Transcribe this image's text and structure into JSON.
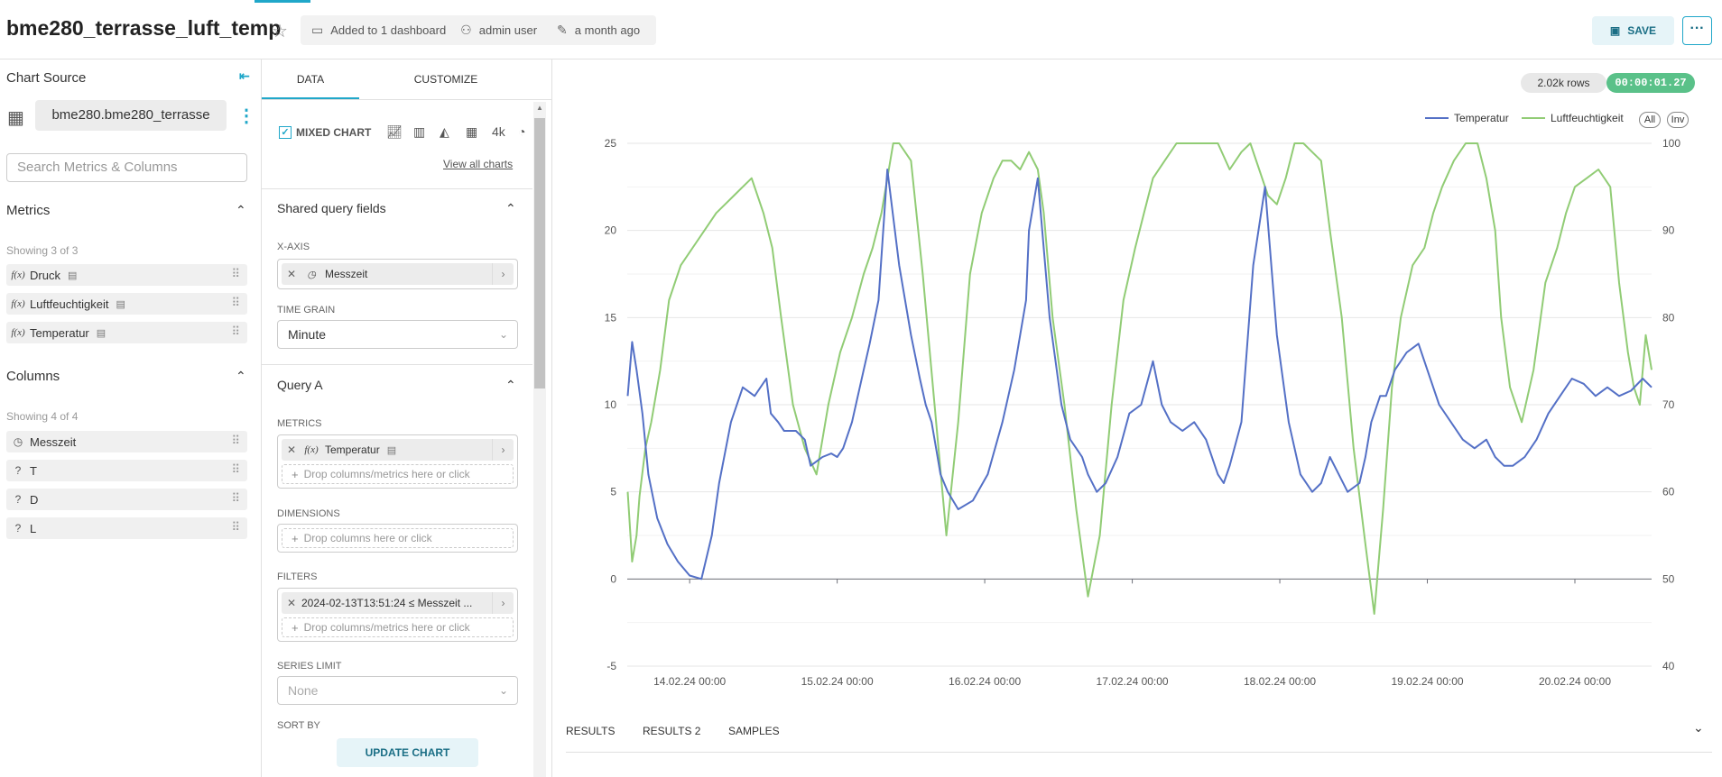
{
  "header": {
    "title": "bme280_terrasse_luft_temp",
    "dashboards": "Added to 1 dashboard",
    "owner": "admin user",
    "modified": "a month ago",
    "save_label": "SAVE",
    "more_label": "···"
  },
  "left": {
    "title": "Chart Source",
    "dataset": "bme280.bme280_terrasse",
    "search_placeholder": "Search Metrics & Columns",
    "metrics_title": "Metrics",
    "metrics_showing": "Showing 3 of 3",
    "metrics": [
      "Druck",
      "Luftfeuchtigkeit",
      "Temperatur"
    ],
    "metric_type": "f(x)",
    "columns_title": "Columns",
    "columns_showing": "Showing 4 of 4",
    "columns": [
      {
        "type": "clock-icon",
        "name": "Messzeit"
      },
      {
        "type": "?",
        "name": "T"
      },
      {
        "type": "?",
        "name": "D"
      },
      {
        "type": "?",
        "name": "L"
      }
    ]
  },
  "mid": {
    "tab_data": "DATA",
    "tab_customize": "CUSTOMIZE",
    "mixed_chart": "MIXED CHART",
    "big_number_icon": "4k",
    "view_all": "View all charts",
    "shared_title": "Shared query fields",
    "xaxis_label": "X-AXIS",
    "xaxis_value": "Messzeit",
    "timegrain_label": "TIME GRAIN",
    "timegrain_value": "Minute",
    "query_title": "Query A",
    "metrics_label": "METRICS",
    "metrics_value": "Temperatur",
    "drop_metrics": "Drop columns/metrics here or click",
    "dimensions_label": "DIMENSIONS",
    "drop_columns": "Drop columns here or click",
    "filters_label": "FILTERS",
    "filter_value": "2024-02-13T13:51:24 ≤ Messzeit ...",
    "drop_filters": "Drop columns/metrics here or click",
    "series_limit_label": "SERIES LIMIT",
    "series_limit_value": "None",
    "sort_by_label": "SORT BY",
    "update_label": "UPDATE CHART"
  },
  "chart_meta": {
    "rows": "2.02k rows",
    "time": "00:00:01.27",
    "legend_all": "All",
    "legend_inv": "Inv",
    "result_tabs": [
      "RESULTS",
      "RESULTS 2",
      "SAMPLES"
    ],
    "colors": {
      "temperatur": "#5470c6",
      "luft": "#91cc75"
    }
  },
  "chart_data": {
    "type": "line",
    "x_ticks": [
      "14.02.24 00:00",
      "15.02.24 00:00",
      "16.02.24 00:00",
      "17.02.24 00:00",
      "18.02.24 00:00",
      "19.02.24 00:00",
      "20.02.24 00:00"
    ],
    "y_left_ticks": [
      "25",
      "20",
      "15",
      "10",
      "5",
      "0",
      "-5"
    ],
    "y_right_ticks": [
      "100",
      "90",
      "80",
      "70",
      "60",
      "50",
      "40"
    ],
    "ylim_left": [
      -5,
      25
    ],
    "ylim_right": [
      40,
      100
    ],
    "xlim_days": [
      13.577,
      20.52
    ],
    "series": [
      {
        "name": "Temperatur",
        "axis": "left",
        "x": [
          13.58,
          13.61,
          13.64,
          13.68,
          13.72,
          13.78,
          13.85,
          13.92,
          14.0,
          14.08,
          14.15,
          14.2,
          14.28,
          14.36,
          14.44,
          14.52,
          14.55,
          14.6,
          14.64,
          14.72,
          14.78,
          14.82,
          14.9,
          14.96,
          15.0,
          15.04,
          15.1,
          15.18,
          15.22,
          15.28,
          15.34,
          15.42,
          15.5,
          15.56,
          15.6,
          15.64,
          15.67,
          15.7,
          15.75,
          15.82,
          15.92,
          16.02,
          16.12,
          16.2,
          16.28,
          16.3,
          16.36,
          16.44,
          16.52,
          16.58,
          16.62,
          16.66,
          16.7,
          16.76,
          16.82,
          16.9,
          16.98,
          17.06,
          17.14,
          17.2,
          17.26,
          17.34,
          17.42,
          17.5,
          17.58,
          17.62,
          17.66,
          17.74,
          17.82,
          17.9,
          17.98,
          18.06,
          18.14,
          18.22,
          18.28,
          18.34,
          18.4,
          18.46,
          18.54,
          18.58,
          18.62,
          18.68,
          18.72,
          18.78,
          18.86,
          18.94,
          19.0,
          19.08,
          19.16,
          19.24,
          19.32,
          19.4,
          19.46,
          19.52,
          19.58,
          19.66,
          19.74,
          19.82,
          19.9,
          19.98,
          20.06,
          20.14,
          20.22,
          20.3,
          20.38,
          20.46,
          20.52
        ],
        "values": [
          10.5,
          13.6,
          12.0,
          9.5,
          6.0,
          3.5,
          2.0,
          1.0,
          0.2,
          0.0,
          2.5,
          5.5,
          9.0,
          11.0,
          10.5,
          11.5,
          9.5,
          9.0,
          8.5,
          8.5,
          8.0,
          6.5,
          7.0,
          7.2,
          7.0,
          7.5,
          9.0,
          12.0,
          13.5,
          16.0,
          23.5,
          18.0,
          14.0,
          11.5,
          10.0,
          9.0,
          7.5,
          6.0,
          5.0,
          4.0,
          4.5,
          6.0,
          9.0,
          12.0,
          16.0,
          20.0,
          23.0,
          15.0,
          10.0,
          8.0,
          7.5,
          7.0,
          6.0,
          5.0,
          5.5,
          7.0,
          9.5,
          10.0,
          12.5,
          10.0,
          9.0,
          8.5,
          9.0,
          8.0,
          6.0,
          5.5,
          6.5,
          9.0,
          18.0,
          22.5,
          14.0,
          9.0,
          6.0,
          5.0,
          5.5,
          7.0,
          6.0,
          5.0,
          5.5,
          7.0,
          9.0,
          10.5,
          10.5,
          12.0,
          13.0,
          13.5,
          12.0,
          10.0,
          9.0,
          8.0,
          7.5,
          8.0,
          7.0,
          6.5,
          6.5,
          7.0,
          8.0,
          9.5,
          10.5,
          11.5,
          11.2,
          10.5,
          11.0,
          10.5,
          10.8,
          11.5,
          11.0
        ]
      },
      {
        "name": "Luftfeuchtigkeit",
        "axis": "right",
        "x": [
          13.58,
          13.61,
          13.64,
          13.66,
          13.7,
          13.74,
          13.8,
          13.86,
          13.94,
          14.02,
          14.1,
          14.18,
          14.24,
          14.3,
          14.36,
          14.42,
          14.5,
          14.56,
          14.62,
          14.7,
          14.78,
          14.86,
          14.94,
          15.02,
          15.1,
          15.18,
          15.24,
          15.3,
          15.34,
          15.38,
          15.42,
          15.5,
          15.58,
          15.66,
          15.74,
          15.82,
          15.9,
          15.98,
          16.06,
          16.12,
          16.18,
          16.24,
          16.3,
          16.36,
          16.4,
          16.46,
          16.54,
          16.62,
          16.7,
          16.78,
          16.86,
          16.94,
          17.02,
          17.08,
          17.14,
          17.22,
          17.3,
          17.38,
          17.46,
          17.52,
          17.58,
          17.66,
          17.74,
          17.8,
          17.86,
          17.92,
          17.98,
          18.04,
          18.1,
          18.16,
          18.22,
          18.28,
          18.34,
          18.42,
          18.5,
          18.58,
          18.64,
          18.7,
          18.76,
          18.82,
          18.9,
          18.98,
          19.04,
          19.1,
          19.18,
          19.26,
          19.34,
          19.4,
          19.46,
          19.5,
          19.56,
          19.64,
          19.72,
          19.8,
          19.88,
          19.94,
          20.0,
          20.08,
          20.16,
          20.24,
          20.3,
          20.36,
          20.4,
          20.44,
          20.48,
          20.52
        ],
        "values": [
          60.0,
          52.0,
          55.0,
          59.5,
          65.0,
          68.0,
          74.0,
          82.0,
          86.0,
          88.0,
          90.0,
          92.0,
          93.0,
          94.0,
          95.0,
          96.0,
          92.0,
          88.0,
          80.0,
          70.0,
          65.0,
          62.0,
          70.0,
          76.0,
          80.0,
          85.0,
          88.0,
          92.0,
          96.0,
          100.0,
          100.0,
          98.0,
          85.0,
          70.0,
          55.0,
          68.0,
          85.0,
          92.0,
          96.0,
          98.0,
          98.0,
          97.0,
          99.0,
          97.0,
          92.0,
          80.0,
          70.0,
          58.0,
          48.0,
          55.0,
          70.0,
          82.0,
          88.0,
          92.0,
          96.0,
          98.0,
          100.0,
          100.0,
          100.0,
          100.0,
          100.0,
          97.0,
          99.0,
          100.0,
          97.0,
          94.0,
          93.0,
          96.0,
          100.0,
          100.0,
          99.0,
          98.0,
          90.0,
          80.0,
          65.0,
          54.0,
          46.0,
          58.0,
          72.0,
          80.0,
          86.0,
          88.0,
          92.0,
          95.0,
          98.0,
          100.0,
          100.0,
          96.0,
          90.0,
          80.0,
          72.0,
          68.0,
          74.0,
          84.0,
          88.0,
          92.0,
          95.0,
          96.0,
          97.0,
          95.0,
          84.0,
          76.0,
          72.0,
          70.0,
          78.0,
          74.0
        ]
      }
    ]
  }
}
